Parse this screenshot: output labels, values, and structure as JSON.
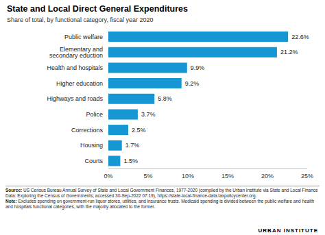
{
  "chart_data": {
    "type": "bar",
    "title": "State and Local Direct General Expenditures",
    "subtitle": "Share of total, by functional category, fiscal year 2020",
    "categories": [
      "Public welfare",
      "Elementary and secondary eduction",
      "Health and hospitals",
      "Higher education",
      "Highways and roads",
      "Police",
      "Corrections",
      "Housing",
      "Courts"
    ],
    "values": [
      22.6,
      21.2,
      9.9,
      9.2,
      5.8,
      3.7,
      2.5,
      1.7,
      1.5
    ],
    "value_labels": [
      "22.6%",
      "21.2%",
      "9.9%",
      "9.2%",
      "5.8%",
      "3.7%",
      "2.5%",
      "1.7%",
      "1.5%"
    ],
    "color": "#1696d2",
    "orientation": "horizontal",
    "data_labels": true,
    "grid": false,
    "xlim": [
      0,
      25
    ],
    "xticks": [
      {
        "value": 0,
        "label": "0%"
      },
      {
        "value": 5,
        "label": "5%"
      },
      {
        "value": 10,
        "label": "10%"
      },
      {
        "value": 15,
        "label": "15%"
      },
      {
        "value": 20,
        "label": "20%"
      },
      {
        "value": 25,
        "label": "25%"
      }
    ],
    "source_label": "Source:",
    "source": "US Census Bureau Annual Survey of State and Local Government Finances, 1977-2020 (compiled by the Urban Institute via State and Local Finance Data: Exploring the Census of Governments; accessed 30-Sep-2022 07:19), https://state-local-finance-data.taxpolicycenter.org.",
    "note_label": "Note:",
    "note": "Excludes spending on government-run liquor stores, utilities, and insurance trusts. Medicaid spending is divided between the public welfare and health and hospitals functional categories, with the majority allocated to the former.",
    "logo": "URBAN INSTITUTE"
  }
}
